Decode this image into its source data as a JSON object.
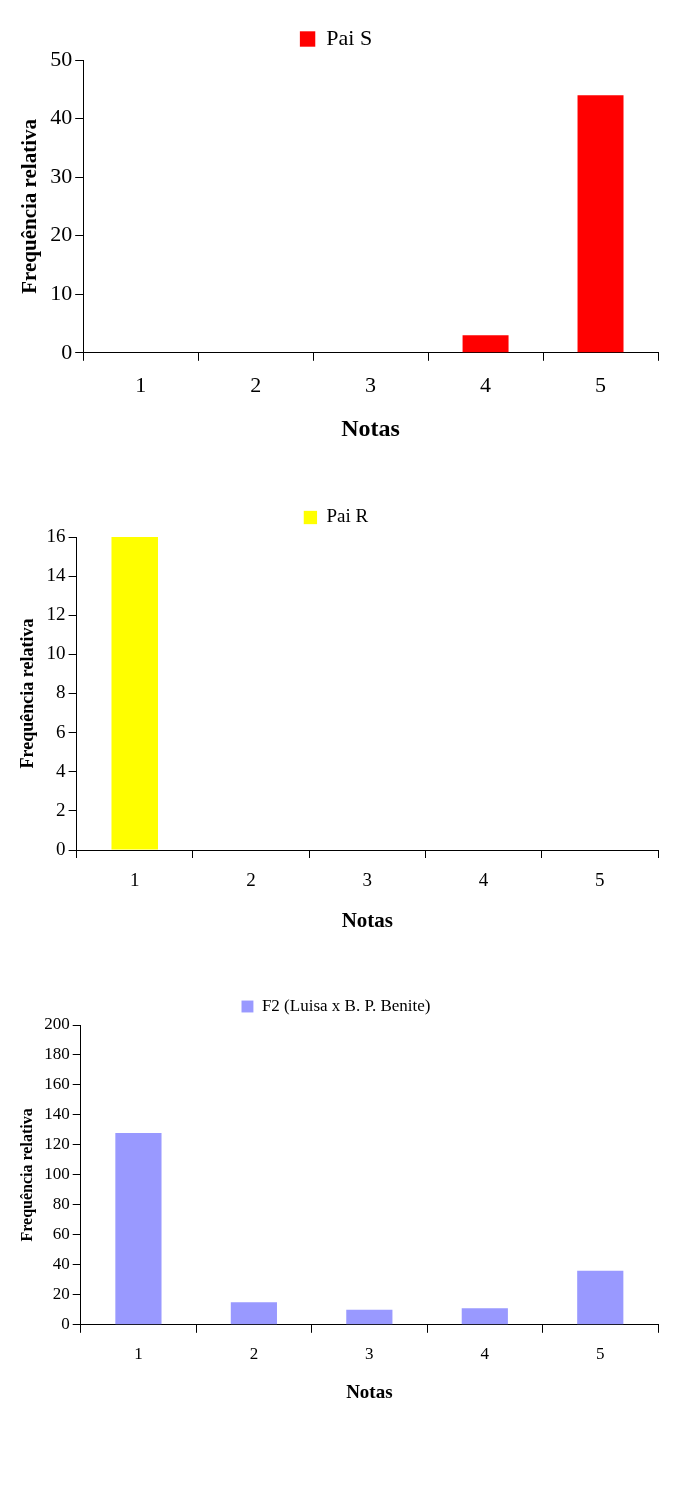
{
  "chart_data": [
    {
      "type": "bar",
      "categories": [
        "1",
        "2",
        "3",
        "4",
        "5"
      ],
      "series": [
        {
          "name": "Pai S",
          "color": "#ff0000",
          "values": [
            0,
            0,
            0,
            3,
            44
          ]
        }
      ],
      "xlabel": "Notas",
      "ylabel": "Frequência relativa",
      "ylim": [
        0,
        50
      ],
      "yticks": [
        0,
        10,
        20,
        30,
        40,
        50
      ],
      "grid": false,
      "legend": "top"
    },
    {
      "type": "bar",
      "categories": [
        "1",
        "2",
        "3",
        "4",
        "5"
      ],
      "series": [
        {
          "name": "Pai R",
          "color": "#ffff00",
          "values": [
            16,
            0,
            0,
            0,
            0
          ]
        }
      ],
      "xlabel": "Notas",
      "ylabel": "Frequência relativa",
      "ylim": [
        0,
        16
      ],
      "yticks": [
        0,
        2,
        4,
        6,
        8,
        10,
        12,
        14,
        16
      ],
      "grid": false,
      "legend": "top"
    },
    {
      "type": "bar",
      "categories": [
        "1",
        "2",
        "3",
        "4",
        "5"
      ],
      "series": [
        {
          "name": "F2 (Luisa x B. P. Benite)",
          "color": "#9999ff",
          "values": [
            128,
            15,
            10,
            11,
            36
          ]
        }
      ],
      "xlabel": "Notas",
      "ylabel": "Frequência relativa",
      "ylim": [
        0,
        200
      ],
      "yticks": [
        0,
        20,
        40,
        60,
        80,
        100,
        120,
        140,
        160,
        180,
        200
      ],
      "grid": false,
      "legend": "top"
    }
  ]
}
